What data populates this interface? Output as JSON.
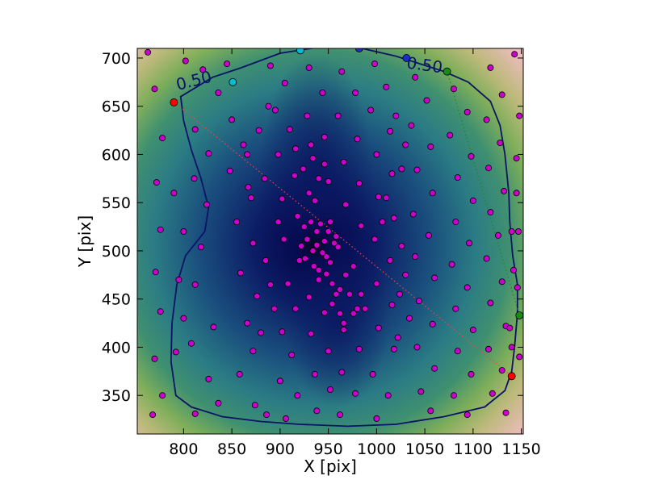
{
  "chart_data": {
    "type": "scatter",
    "title": "",
    "xlabel": "X [pix]",
    "ylabel": "Y [pix]",
    "xlim": [
      752,
      1152
    ],
    "ylim": [
      310,
      710
    ],
    "xticks": [
      800,
      850,
      900,
      950,
      1000,
      1050,
      1100,
      1150
    ],
    "yticks": [
      350,
      400,
      450,
      500,
      550,
      600,
      650,
      700
    ],
    "grid": false,
    "legend": "none",
    "background": "density heatmap (dark navy at centre, teal/green mid, tan/pink at corners)",
    "center": [
      940,
      505
    ],
    "contour": {
      "level_label": "0.50",
      "color": "#0a1466",
      "points": [
        [
          797,
          660
        ],
        [
          830,
          680
        ],
        [
          860,
          690
        ],
        [
          900,
          705
        ],
        [
          945,
          712
        ],
        [
          985,
          710
        ],
        [
          1020,
          702
        ],
        [
          1045,
          694
        ],
        [
          1070,
          686
        ],
        [
          1095,
          675
        ],
        [
          1118,
          655
        ],
        [
          1128,
          630
        ],
        [
          1133,
          600
        ],
        [
          1137,
          560
        ],
        [
          1138,
          530
        ],
        [
          1141,
          495
        ],
        [
          1146,
          465
        ],
        [
          1146,
          435
        ],
        [
          1143,
          400
        ],
        [
          1140,
          375
        ],
        [
          1133,
          355
        ],
        [
          1112,
          338
        ],
        [
          1070,
          328
        ],
        [
          1020,
          320
        ],
        [
          970,
          318
        ],
        [
          920,
          320
        ],
        [
          880,
          323
        ],
        [
          840,
          328
        ],
        [
          808,
          338
        ],
        [
          792,
          350
        ],
        [
          787,
          385
        ],
        [
          788,
          425
        ],
        [
          793,
          465
        ],
        [
          802,
          495
        ],
        [
          822,
          520
        ],
        [
          826,
          545
        ],
        [
          818,
          575
        ],
        [
          808,
          605
        ],
        [
          800,
          635
        ]
      ],
      "label_positions": [
        [
          812,
          671
        ],
        [
          1049,
          687
        ]
      ]
    },
    "highlight_points": [
      {
        "color": "#ff0000",
        "x": 790,
        "y": 654
      },
      {
        "color": "#ff0000",
        "x": 1140,
        "y": 370
      },
      {
        "color": "#00bcd4",
        "x": 851,
        "y": 675
      },
      {
        "color": "#00bcd4",
        "x": 921,
        "y": 708
      },
      {
        "color": "#1a2ecc",
        "x": 982,
        "y": 710
      },
      {
        "color": "#1a2ecc",
        "x": 1031,
        "y": 700
      },
      {
        "color": "#1a8a1a",
        "x": 1073,
        "y": 686
      },
      {
        "color": "#1a8a1a",
        "x": 1148,
        "y": 433
      }
    ],
    "dotted_lines": [
      {
        "color": "#ff4040",
        "from": [
          790,
          654
        ],
        "to": [
          1140,
          370
        ]
      },
      {
        "color": "#1a8a1a",
        "from": [
          1073,
          686
        ],
        "to": [
          1148,
          433
        ]
      }
    ],
    "scatter_color": "#cc00cc",
    "scatter_points": [
      [
        763,
        706
      ],
      [
        770,
        668
      ],
      [
        778,
        617
      ],
      [
        772,
        571
      ],
      [
        776,
        522
      ],
      [
        771,
        478
      ],
      [
        776,
        437
      ],
      [
        770,
        388
      ],
      [
        778,
        350
      ],
      [
        768,
        330
      ],
      [
        802,
        697
      ],
      [
        820,
        688
      ],
      [
        845,
        694
      ],
      [
        836,
        664
      ],
      [
        812,
        626
      ],
      [
        826,
        601
      ],
      [
        811,
        575
      ],
      [
        824,
        548
      ],
      [
        818,
        504
      ],
      [
        812,
        465
      ],
      [
        831,
        421
      ],
      [
        808,
        404
      ],
      [
        826,
        367
      ],
      [
        836,
        342
      ],
      [
        812,
        331
      ],
      [
        850,
        636
      ],
      [
        862,
        610
      ],
      [
        848,
        583
      ],
      [
        867,
        566
      ],
      [
        855,
        530
      ],
      [
        872,
        508
      ],
      [
        859,
        477
      ],
      [
        876,
        453
      ],
      [
        866,
        425
      ],
      [
        872,
        396
      ],
      [
        858,
        372
      ],
      [
        874,
        340
      ],
      [
        886,
        330
      ],
      [
        890,
        692
      ],
      [
        905,
        674
      ],
      [
        895,
        646
      ],
      [
        910,
        626
      ],
      [
        898,
        600
      ],
      [
        915,
        578
      ],
      [
        902,
        554
      ],
      [
        918,
        536
      ],
      [
        904,
        512
      ],
      [
        920,
        490
      ],
      [
        908,
        466
      ],
      [
        916,
        440
      ],
      [
        902,
        416
      ],
      [
        912,
        392
      ],
      [
        900,
        365
      ],
      [
        918,
        350
      ],
      [
        906,
        326
      ],
      [
        930,
        690
      ],
      [
        944,
        664
      ],
      [
        928,
        640
      ],
      [
        946,
        618
      ],
      [
        934,
        596
      ],
      [
        950,
        572
      ],
      [
        936,
        552
      ],
      [
        952,
        530
      ],
      [
        938,
        520
      ],
      [
        946,
        510
      ],
      [
        934,
        500
      ],
      [
        948,
        494
      ],
      [
        940,
        480
      ],
      [
        954,
        466
      ],
      [
        930,
        452
      ],
      [
        946,
        436
      ],
      [
        932,
        414
      ],
      [
        950,
        396
      ],
      [
        936,
        372
      ],
      [
        952,
        356
      ],
      [
        938,
        334
      ],
      [
        964,
        686
      ],
      [
        978,
        664
      ],
      [
        960,
        640
      ],
      [
        980,
        616
      ],
      [
        966,
        592
      ],
      [
        982,
        570
      ],
      [
        968,
        548
      ],
      [
        984,
        526
      ],
      [
        960,
        504
      ],
      [
        976,
        484
      ],
      [
        962,
        460
      ],
      [
        980,
        440
      ],
      [
        966,
        418
      ],
      [
        982,
        398
      ],
      [
        964,
        374
      ],
      [
        978,
        352
      ],
      [
        962,
        330
      ],
      [
        998,
        694
      ],
      [
        1010,
        670
      ],
      [
        994,
        646
      ],
      [
        1014,
        624
      ],
      [
        1000,
        600
      ],
      [
        1016,
        580
      ],
      [
        1002,
        556
      ],
      [
        1018,
        534
      ],
      [
        998,
        512
      ],
      [
        1014,
        490
      ],
      [
        1000,
        466
      ],
      [
        1016,
        444
      ],
      [
        1002,
        420
      ],
      [
        1018,
        398
      ],
      [
        996,
        372
      ],
      [
        1012,
        350
      ],
      [
        1000,
        326
      ],
      [
        1040,
        680
      ],
      [
        1052,
        656
      ],
      [
        1036,
        630
      ],
      [
        1056,
        608
      ],
      [
        1042,
        584
      ],
      [
        1058,
        560
      ],
      [
        1038,
        538
      ],
      [
        1054,
        516
      ],
      [
        1040,
        494
      ],
      [
        1060,
        472
      ],
      [
        1044,
        448
      ],
      [
        1058,
        424
      ],
      [
        1042,
        400
      ],
      [
        1060,
        378
      ],
      [
        1046,
        354
      ],
      [
        1056,
        334
      ],
      [
        1080,
        668
      ],
      [
        1094,
        644
      ],
      [
        1076,
        620
      ],
      [
        1098,
        598
      ],
      [
        1084,
        576
      ],
      [
        1100,
        552
      ],
      [
        1082,
        530
      ],
      [
        1096,
        508
      ],
      [
        1078,
        486
      ],
      [
        1094,
        462
      ],
      [
        1082,
        440
      ],
      [
        1100,
        418
      ],
      [
        1084,
        396
      ],
      [
        1098,
        372
      ],
      [
        1080,
        350
      ],
      [
        1094,
        330
      ],
      [
        1118,
        690
      ],
      [
        1130,
        662
      ],
      [
        1114,
        636
      ],
      [
        1128,
        612
      ],
      [
        1116,
        586
      ],
      [
        1132,
        562
      ],
      [
        1118,
        540
      ],
      [
        1126,
        516
      ],
      [
        1114,
        492
      ],
      [
        1130,
        468
      ],
      [
        1118,
        446
      ],
      [
        1134,
        422
      ],
      [
        1116,
        398
      ],
      [
        1130,
        376
      ],
      [
        1120,
        352
      ],
      [
        1134,
        332
      ],
      [
        1143,
        704
      ],
      [
        1148,
        640
      ],
      [
        1145,
        596
      ],
      [
        1147,
        520
      ],
      [
        1146,
        462
      ],
      [
        1148,
        390
      ],
      [
        925,
        525
      ],
      [
        932,
        530
      ],
      [
        942,
        528
      ],
      [
        950,
        520
      ],
      [
        928,
        512
      ],
      [
        956,
        508
      ],
      [
        938,
        506
      ],
      [
        944,
        498
      ],
      [
        926,
        492
      ],
      [
        952,
        488
      ],
      [
        935,
        484
      ],
      [
        948,
        476
      ],
      [
        940,
        470
      ],
      [
        958,
        515
      ],
      [
        922,
        505
      ],
      [
        968,
        475
      ],
      [
        972,
        455
      ],
      [
        976,
        435
      ],
      [
        984,
        455
      ],
      [
        958,
        455
      ],
      [
        962,
        435
      ],
      [
        988,
        440
      ],
      [
        966,
        425
      ],
      [
        954,
        445
      ],
      [
        930,
        560
      ],
      [
        924,
        585
      ],
      [
        916,
        606
      ],
      [
        940,
        575
      ],
      [
        932,
        610
      ],
      [
        946,
        590
      ],
      [
        888,
        650
      ],
      [
        878,
        625
      ],
      [
        866,
        600
      ],
      [
        884,
        575
      ],
      [
        870,
        555
      ],
      [
        898,
        530
      ],
      [
        885,
        490
      ],
      [
        890,
        465
      ],
      [
        894,
        440
      ],
      [
        880,
        415
      ],
      [
        1020,
        640
      ],
      [
        1030,
        610
      ],
      [
        1026,
        585
      ],
      [
        1010,
        555
      ],
      [
        1006,
        530
      ],
      [
        1026,
        505
      ],
      [
        1030,
        475
      ],
      [
        1024,
        455
      ],
      [
        1034,
        430
      ],
      [
        1022,
        410
      ],
      [
        790,
        560
      ],
      [
        800,
        520
      ],
      [
        795,
        470
      ],
      [
        800,
        430
      ],
      [
        792,
        395
      ],
      [
        1145,
        560
      ],
      [
        1140,
        520
      ],
      [
        1142,
        480
      ],
      [
        1138,
        420
      ],
      [
        1140,
        400
      ]
    ]
  }
}
